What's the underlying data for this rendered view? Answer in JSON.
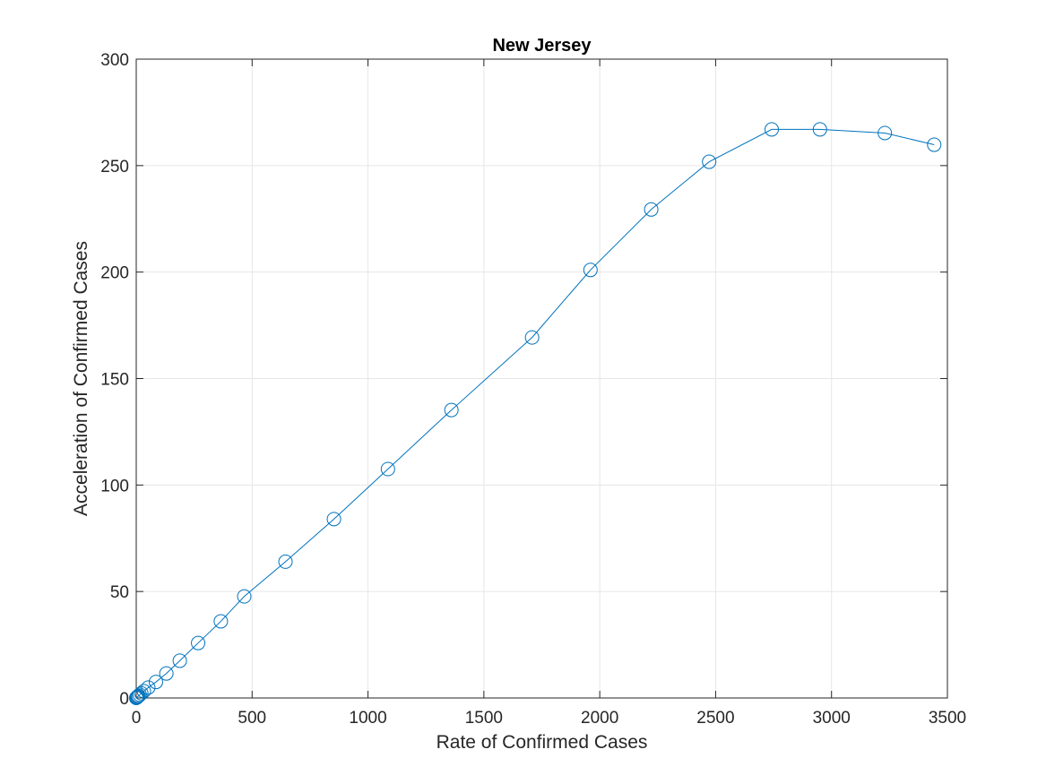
{
  "chart_data": {
    "type": "line",
    "title": "New Jersey",
    "xlabel": "Rate of Confirmed Cases",
    "ylabel": "Acceleration of Confirmed Cases",
    "xlim": [
      0,
      3500
    ],
    "ylim": [
      0,
      300
    ],
    "xticks": [
      0,
      500,
      1000,
      1500,
      2000,
      2500,
      3000,
      3500
    ],
    "yticks": [
      0,
      50,
      100,
      150,
      200,
      250,
      300
    ],
    "grid": true,
    "marker": "circle",
    "series": [
      {
        "color": "#0072BD",
        "points": [
          [
            0,
            0
          ],
          [
            2,
            0.2
          ],
          [
            4,
            0.4
          ],
          [
            7,
            0.7
          ],
          [
            10,
            1
          ],
          [
            15,
            1.5
          ],
          [
            22,
            2.2
          ],
          [
            33,
            3.2
          ],
          [
            52,
            4.9
          ],
          [
            85,
            7.5
          ],
          [
            130,
            11.5
          ],
          [
            188,
            17.5
          ],
          [
            267,
            25.8
          ],
          [
            365,
            36
          ],
          [
            466,
            47.7
          ],
          [
            644,
            64
          ],
          [
            853,
            84
          ],
          [
            1086,
            107.5
          ],
          [
            1360,
            135.2
          ],
          [
            1708,
            169.3
          ],
          [
            1960,
            201
          ],
          [
            2222,
            229.4
          ],
          [
            2472,
            251.8
          ],
          [
            2742,
            267
          ],
          [
            2950,
            267
          ],
          [
            3230,
            265.3
          ],
          [
            3443,
            259.8
          ]
        ]
      }
    ]
  }
}
